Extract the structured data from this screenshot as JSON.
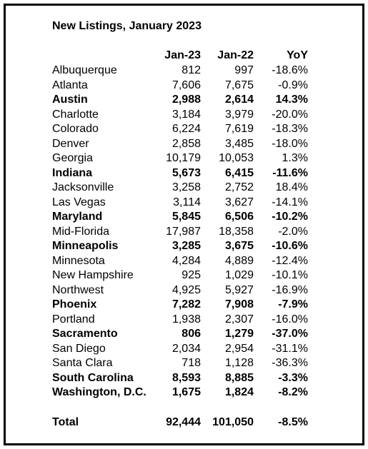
{
  "title": "New Listings, January 2023",
  "header": [
    "Jan-23",
    "Jan-22",
    "YoY"
  ],
  "rows": [
    {
      "name": "Albuquerque",
      "cells": [
        "812",
        "997",
        "-18.6%"
      ],
      "bold": false
    },
    {
      "name": "Atlanta",
      "cells": [
        "7,606",
        "7,675",
        "-0.9%"
      ],
      "bold": false
    },
    {
      "name": "Austin",
      "cells": [
        "2,988",
        "2,614",
        "14.3%"
      ],
      "bold": true
    },
    {
      "name": "Charlotte",
      "cells": [
        "3,184",
        "3,979",
        "-20.0%"
      ],
      "bold": false
    },
    {
      "name": "Colorado",
      "cells": [
        "6,224",
        "7,619",
        "-18.3%"
      ],
      "bold": false
    },
    {
      "name": "Denver",
      "cells": [
        "2,858",
        "3,485",
        "-18.0%"
      ],
      "bold": false
    },
    {
      "name": "Georgia",
      "cells": [
        "10,179",
        "10,053",
        "1.3%"
      ],
      "bold": false
    },
    {
      "name": "Indiana",
      "cells": [
        "5,673",
        "6,415",
        "-11.6%"
      ],
      "bold": true
    },
    {
      "name": "Jacksonville",
      "cells": [
        "3,258",
        "2,752",
        "18.4%"
      ],
      "bold": false
    },
    {
      "name": "Las Vegas",
      "cells": [
        "3,114",
        "3,627",
        "-14.1%"
      ],
      "bold": false
    },
    {
      "name": "Maryland",
      "cells": [
        "5,845",
        "6,506",
        "-10.2%"
      ],
      "bold": true
    },
    {
      "name": "Mid-Florida",
      "cells": [
        "17,987",
        "18,358",
        "-2.0%"
      ],
      "bold": false
    },
    {
      "name": "Minneapolis",
      "cells": [
        "3,285",
        "3,675",
        "-10.6%"
      ],
      "bold": true
    },
    {
      "name": "Minnesota",
      "cells": [
        "4,284",
        "4,889",
        "-12.4%"
      ],
      "bold": false
    },
    {
      "name": "New Hampshire",
      "cells": [
        "925",
        "1,029",
        "-10.1%"
      ],
      "bold": false
    },
    {
      "name": "Northwest",
      "cells": [
        "4,925",
        "5,927",
        "-16.9%"
      ],
      "bold": false
    },
    {
      "name": "Phoenix",
      "cells": [
        "7,282",
        "7,908",
        "-7.9%"
      ],
      "bold": true
    },
    {
      "name": "Portland",
      "cells": [
        "1,938",
        "2,307",
        "-16.0%"
      ],
      "bold": false
    },
    {
      "name": "Sacramento",
      "cells": [
        "806",
        "1,279",
        "-37.0%"
      ],
      "bold": true
    },
    {
      "name": "San Diego",
      "cells": [
        "2,034",
        "2,954",
        "-31.1%"
      ],
      "bold": false
    },
    {
      "name": "Santa Clara",
      "cells": [
        "718",
        "1,128",
        "-36.3%"
      ],
      "bold": false
    },
    {
      "name": "South Carolina",
      "cells": [
        "8,593",
        "8,885",
        "-3.3%"
      ],
      "bold": true
    },
    {
      "name": "Washington, D.C.",
      "cells": [
        "1,675",
        "1,824",
        "-8.2%"
      ],
      "bold": true
    }
  ],
  "total": {
    "name": "Total",
    "cells": [
      "92,444",
      "101,050",
      "-8.5%"
    ],
    "bold": true
  }
}
